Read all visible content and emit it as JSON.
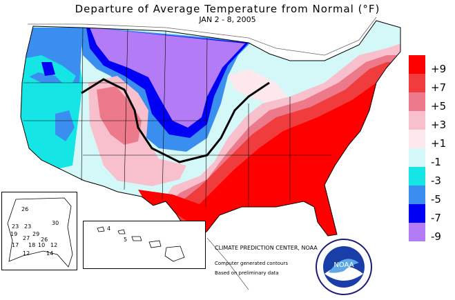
{
  "title": "Departure of Average Temperature from Normal (°F)",
  "subtitle": "JAN 2 - 8, 2005",
  "legend": [
    {
      "label": "+9",
      "color": "#ff0000"
    },
    {
      "label": "+7",
      "color": "#f03c3c"
    },
    {
      "label": "+5",
      "color": "#ec7a8a"
    },
    {
      "label": "+3",
      "color": "#f7c0cc"
    },
    {
      "label": "+1",
      "color": "#fde8ee"
    },
    {
      "label": "-1",
      "color": "#d4f7f7"
    },
    {
      "label": "-3",
      "color": "#16e5e5"
    },
    {
      "label": "-5",
      "color": "#3a8ef0"
    },
    {
      "label": "-7",
      "color": "#0000f5"
    },
    {
      "label": "-9",
      "color": "#b37bf5"
    }
  ],
  "credits": {
    "line1": "CLIMATE PREDICTION CENTER, NOAA",
    "line2": "Computer generated contours",
    "line3": "Based on preliminary data"
  },
  "alaska_values": [
    "26",
    "23",
    "23",
    "30",
    "19",
    "27",
    "29",
    "26",
    "17",
    "18",
    "10",
    "12",
    "12",
    "14"
  ],
  "hawaii_values": [
    "4",
    "5"
  ],
  "logo_text": "NOAA"
}
